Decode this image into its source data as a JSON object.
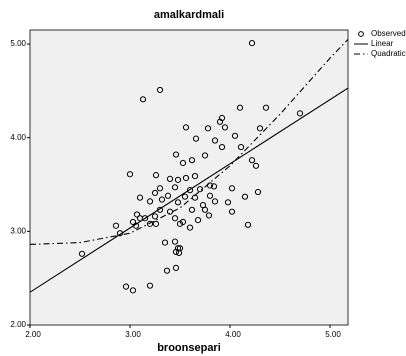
{
  "chart_data": {
    "type": "scatter",
    "title": "amalkardmali",
    "x_label": "broonsepari",
    "xlim": [
      2,
      5.18
    ],
    "ylim": [
      2,
      5.15
    ],
    "xticks": [
      {
        "value": 2,
        "label": "2.00"
      },
      {
        "value": 3,
        "label": "3.00"
      },
      {
        "value": 4,
        "label": "4.00"
      },
      {
        "value": 5,
        "label": "5.00"
      }
    ],
    "yticks": [
      {
        "value": 2,
        "label": "2.00"
      },
      {
        "value": 3,
        "label": "3.00"
      },
      {
        "value": 4,
        "label": "4.00"
      },
      {
        "value": 5,
        "label": "5.00"
      }
    ],
    "background": "#f0f0f0",
    "series": [
      {
        "name": "Observed",
        "mark": "circle",
        "color": "#000000",
        "x": [
          4.22,
          3.3,
          3.13,
          3.92,
          3.9,
          4.1,
          4.36,
          3.56,
          3.78,
          3.95,
          4.3,
          4.7,
          3.66,
          3.85,
          4.05,
          4.11,
          3.92,
          3.46,
          3.75,
          3.53,
          3.62,
          4.22,
          4.26,
          3.0,
          3.26,
          3.4,
          3.48,
          3.56,
          3.65,
          3.8,
          3.84,
          3.3,
          3.45,
          3.6,
          3.7,
          4.02,
          3.25,
          3.38,
          3.55,
          3.65,
          3.8,
          4.28,
          3.1,
          3.2,
          3.32,
          3.48,
          3.73,
          3.85,
          3.98,
          4.15,
          3.07,
          3.3,
          3.4,
          3.62,
          3.75,
          4.02,
          3.1,
          3.15,
          3.25,
          3.45,
          3.53,
          3.68,
          3.79,
          2.86,
          2.9,
          3.03,
          3.06,
          3.2,
          3.26,
          3.5,
          3.6,
          4.18,
          3.35,
          3.45,
          3.48,
          3.5,
          3.46,
          3.49,
          2.52,
          3.37,
          3.46,
          2.96,
          3.03,
          3.2
        ],
        "values": [
          5.01,
          4.51,
          4.41,
          4.21,
          4.17,
          4.32,
          4.32,
          4.11,
          4.1,
          4.11,
          4.1,
          4.26,
          3.99,
          3.97,
          4.02,
          3.9,
          3.9,
          3.82,
          3.81,
          3.73,
          3.76,
          3.76,
          3.7,
          3.61,
          3.6,
          3.56,
          3.55,
          3.57,
          3.59,
          3.49,
          3.48,
          3.46,
          3.47,
          3.44,
          3.45,
          3.46,
          3.41,
          3.38,
          3.37,
          3.36,
          3.38,
          3.42,
          3.36,
          3.32,
          3.34,
          3.31,
          3.28,
          3.32,
          3.31,
          3.37,
          3.18,
          3.23,
          3.21,
          3.23,
          3.23,
          3.21,
          3.14,
          3.14,
          3.16,
          3.14,
          3.1,
          3.12,
          3.17,
          3.06,
          2.98,
          3.1,
          3.06,
          3.08,
          3.08,
          3.08,
          3.04,
          3.07,
          2.88,
          2.89,
          2.82,
          2.82,
          2.78,
          2.77,
          2.76,
          2.58,
          2.61,
          2.41,
          2.37,
          2.42
        ]
      },
      {
        "name": "Linear",
        "mark": "line",
        "dash": "solid",
        "color": "#000000",
        "x": [
          2,
          5.18
        ],
        "values": [
          2.35,
          4.53
        ]
      },
      {
        "name": "Quadratic",
        "mark": "line",
        "dash": "dash-dot",
        "color": "#000000",
        "x": [
          2,
          2.5,
          3,
          3.5,
          4,
          4.5,
          5,
          5.18
        ],
        "values": [
          2.86,
          2.88,
          2.98,
          3.25,
          3.7,
          4.25,
          4.85,
          5.05
        ]
      }
    ]
  }
}
